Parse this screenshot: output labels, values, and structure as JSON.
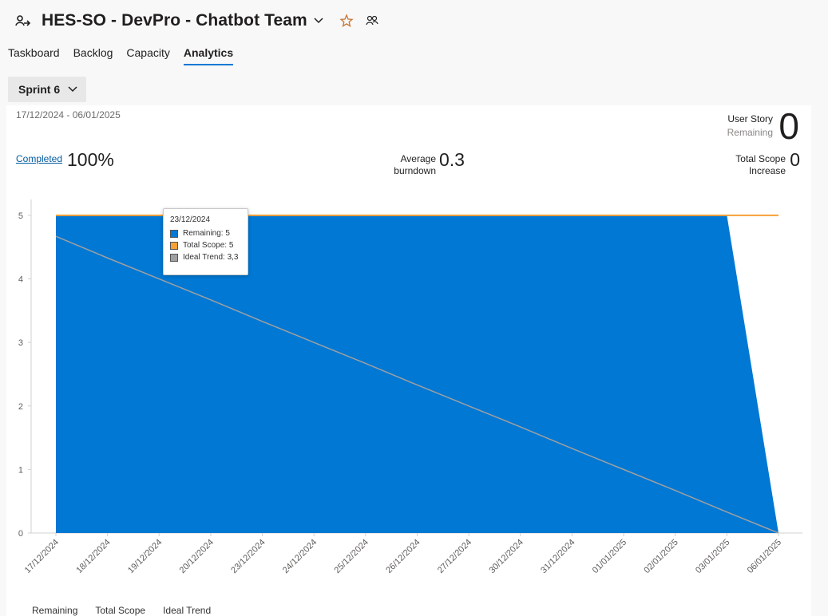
{
  "header": {
    "title": "HES-SO - DevPro - Chatbot Team",
    "team_icon": "team-icon",
    "favorite_icon": "star-icon",
    "members_icon": "people-icon",
    "accent_color": "#0078d4",
    "star_color": "#c87533"
  },
  "tabs": [
    {
      "label": "Taskboard",
      "active": false
    },
    {
      "label": "Backlog",
      "active": false
    },
    {
      "label": "Capacity",
      "active": false
    },
    {
      "label": "Analytics",
      "active": true
    }
  ],
  "sprint_selector": {
    "label": "Sprint 6"
  },
  "summary": {
    "date_range": "17/12/2024 - 06/01/2025",
    "user_story_label": "User Story",
    "remaining_label": "Remaining",
    "remaining_value": "0",
    "completed_label": "Completed",
    "completed_value": "100%",
    "avg_burndown_label_1": "Average",
    "avg_burndown_label_2": "burndown",
    "avg_burndown_value": "0.3",
    "scope_label_1": "Total Scope",
    "scope_label_2": "Increase",
    "scope_value": "0"
  },
  "tooltip": {
    "date": "23/12/2024",
    "remaining": "Remaining: 5",
    "total_scope": "Total Scope: 5",
    "ideal_trend": "Ideal Trend: 3,3"
  },
  "legend": [
    "Remaining",
    "Total Scope",
    "Ideal Trend"
  ],
  "chart_data": {
    "type": "area",
    "x": [
      "17/12/2024",
      "18/12/2024",
      "19/12/2024",
      "20/12/2024",
      "23/12/2024",
      "24/12/2024",
      "25/12/2024",
      "26/12/2024",
      "27/12/2024",
      "30/12/2024",
      "31/12/2024",
      "01/01/2025",
      "02/01/2025",
      "03/01/2025",
      "06/01/2025"
    ],
    "yticks": [
      0,
      1,
      2,
      3,
      4,
      5
    ],
    "ylim": [
      0,
      5.25
    ],
    "series": [
      {
        "name": "Remaining",
        "type": "area",
        "color": "#0078d4",
        "values": [
          5,
          5,
          5,
          5,
          5,
          5,
          5,
          5,
          5,
          5,
          5,
          5,
          5,
          5,
          0
        ]
      },
      {
        "name": "Total Scope",
        "type": "line",
        "color": "#f7a036",
        "values": [
          5,
          5,
          5,
          5,
          5,
          5,
          5,
          5,
          5,
          5,
          5,
          5,
          5,
          5,
          5
        ]
      },
      {
        "name": "Ideal Trend",
        "type": "line",
        "color": "#a0a0a0",
        "values": [
          4.67,
          4.33,
          4.0,
          3.67,
          3.33,
          3.0,
          2.67,
          2.33,
          2.0,
          1.67,
          1.33,
          1.0,
          0.67,
          0.33,
          0
        ]
      }
    ]
  }
}
